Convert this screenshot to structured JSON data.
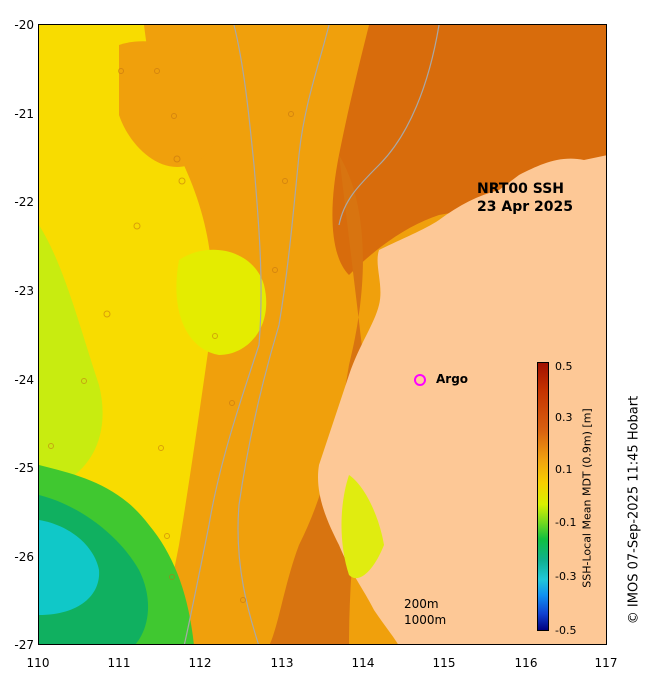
{
  "map": {
    "title_line1": "NRT00 SSH",
    "title_line2": "23 Apr 2025",
    "x_ticks": [
      "110",
      "111",
      "112",
      "113",
      "114",
      "115",
      "116",
      "117"
    ],
    "y_ticks": [
      "-20",
      "-21",
      "-22",
      "-23",
      "-24",
      "-25",
      "-26",
      "-27"
    ],
    "legend_argo": "Argo",
    "scale_200": "200m",
    "scale_1000": "1000m"
  },
  "colorbar": {
    "title": "SSH-Local Mean MDT (0.9m) [m]",
    "ticks": [
      "0.5",
      "0.3",
      "0.1",
      "-0.1",
      "-0.3",
      "-0.5"
    ]
  },
  "credit": "© IMOS 07-Sep-2025 11:45 Hobart",
  "colors": {
    "land": "#fdc896",
    "ssh_high": "#d86c0c",
    "ssh_mid": "#f0a00c",
    "ssh_yellow": "#f8dc00",
    "ssh_lime": "#d8f000",
    "ssh_green": "#10c040",
    "ssh_cyan": "#10d0d0",
    "argo_marker": "#ff00ff",
    "contour": "#a8a8a8"
  }
}
